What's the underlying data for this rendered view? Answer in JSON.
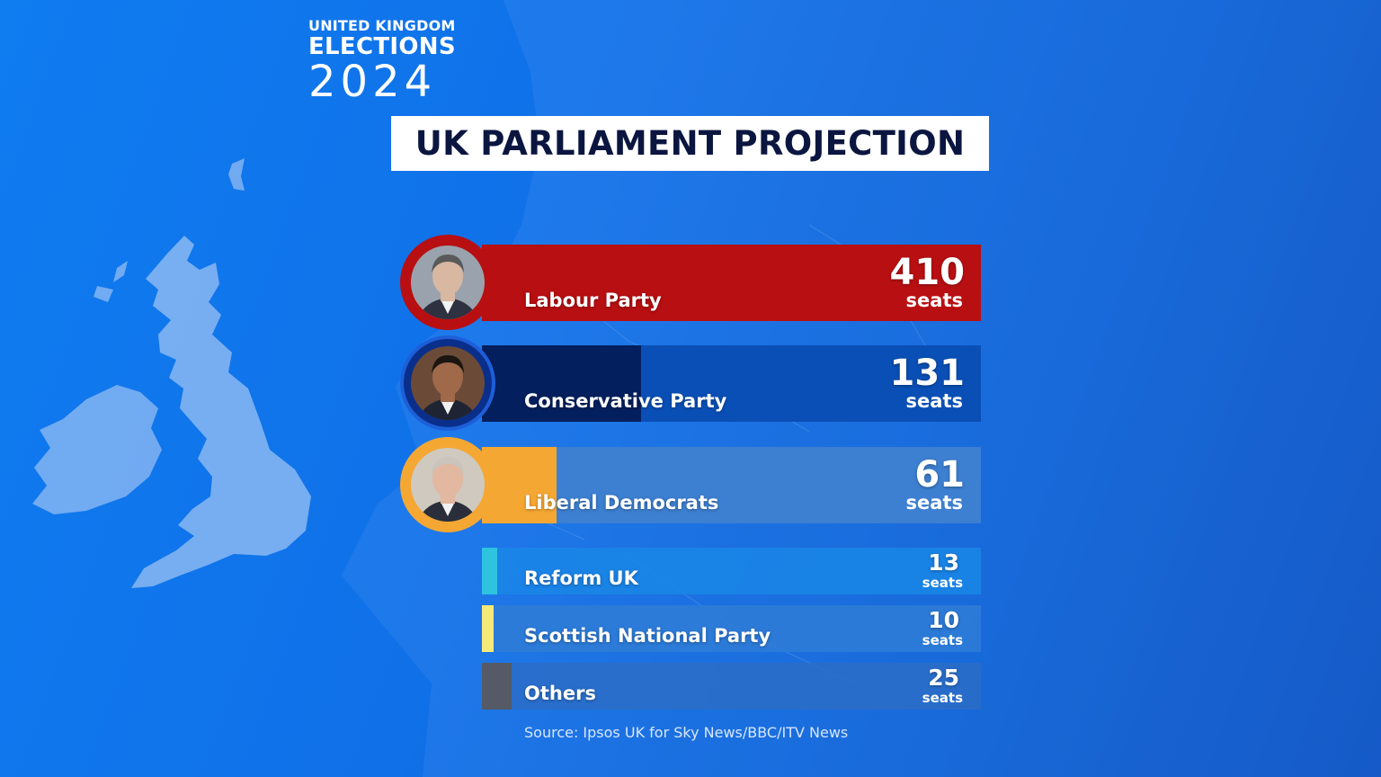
{
  "brand": {
    "line1": "UNITED KINGDOM",
    "line2": "ELECTIONS",
    "year": "2024"
  },
  "title": "UK PARLIAMENT PROJECTION",
  "source": "Source: Ipsos UK for Sky News/BBC/ITV News",
  "colors": {
    "background": "#0f72ea",
    "labour": "#b80f12",
    "conservative": "#031f5e",
    "libdem": "#f5a733",
    "reform": "#2ec4e0",
    "snp": "#f5e97a",
    "others": "#555a66"
  },
  "chart_data": {
    "type": "bar",
    "title": "UK PARLIAMENT PROJECTION",
    "categories": [
      "Labour Party",
      "Conservative Party",
      "Liberal Democrats",
      "Reform UK",
      "Scottish National Party",
      "Others"
    ],
    "values": [
      410,
      131,
      61,
      13,
      10,
      25
    ],
    "unit_label": "seats",
    "xlim": [
      0,
      410
    ],
    "parties": [
      {
        "name": "Labour Party",
        "seats": 410,
        "seats_label": "seats",
        "color": "#b80f12",
        "track": "#b80f12",
        "ring": "#b80f12",
        "photo": "keir-starmer-portrait"
      },
      {
        "name": "Conservative Party",
        "seats": 131,
        "seats_label": "seats",
        "color": "#031f5e",
        "track": "#0a4fb5",
        "ring": "#0a2f8a",
        "photo": "rishi-sunak-portrait"
      },
      {
        "name": "Liberal Democrats",
        "seats": 61,
        "seats_label": "seats",
        "color": "#f5a733",
        "track": "#3d7fd0",
        "ring": "#f5a733",
        "photo": "ed-davey-portrait"
      },
      {
        "name": "Reform UK",
        "seats": 13,
        "seats_label": "seats",
        "color": "#2ec4e0",
        "track": "#1a86e6"
      },
      {
        "name": "Scottish National Party",
        "seats": 10,
        "seats_label": "seats",
        "color": "#f5e97a",
        "track": "#2f7dd6"
      },
      {
        "name": "Others",
        "seats": 25,
        "seats_label": "seats",
        "color": "#555a66",
        "track": "#2b6dc7"
      }
    ]
  }
}
